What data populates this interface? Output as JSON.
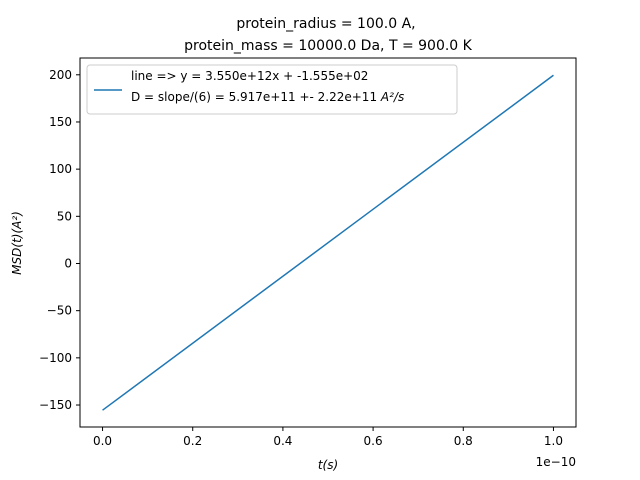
{
  "chart_data": {
    "type": "line",
    "title": "protein_radius = 100.0 A,",
    "subtitle": "protein_mass = 10000.0 Da, T = 900.0 K",
    "xlabel": "t(s)",
    "ylabel": "MSD(t)(A²)",
    "x_offset_label": "1e−10",
    "xlim": [
      -0.05,
      1.05
    ],
    "ylim": [
      -173.3,
      217.8
    ],
    "xticks": [
      0.0,
      0.2,
      0.4,
      0.6,
      0.8,
      1.0
    ],
    "xtick_labels": [
      "0.0",
      "0.2",
      "0.4",
      "0.6",
      "0.8",
      "1.0"
    ],
    "yticks": [
      -150,
      -100,
      -50,
      0,
      50,
      100,
      150,
      200
    ],
    "ytick_labels": [
      "−150",
      "−100",
      "−50",
      "0",
      "50",
      "100",
      "150",
      "200"
    ],
    "grid": false,
    "legend_position": "top-left",
    "legend": {
      "line1": "line => y = 3.550e+12x + -1.555e+02",
      "line2_prefix": "D = slope/(6) = 5.917e+11 +- 2.22e+11 ",
      "line2_unit": "A²/s"
    },
    "series": [
      {
        "color": "#1f77b4",
        "x": [
          0.0,
          1.0
        ],
        "y": [
          -155.5,
          199.5
        ]
      }
    ]
  }
}
